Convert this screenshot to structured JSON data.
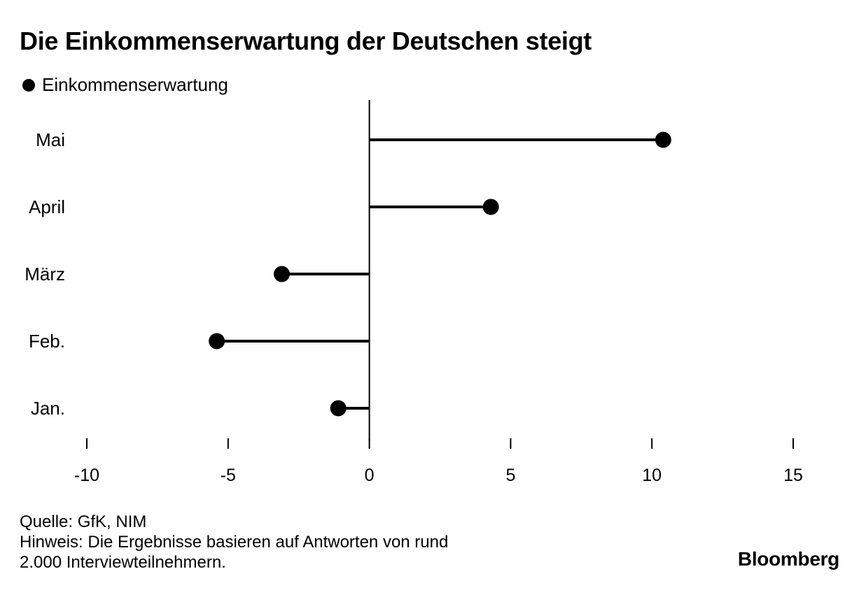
{
  "title": "Die Einkommenserwartung der Deutschen steigt",
  "legend": {
    "label": "Einkommenserwartung",
    "marker": "filled-circle",
    "color": "#000000"
  },
  "chart_data": {
    "type": "dot-lollipop-horizontal",
    "title": "Die Einkommenserwartung der Deutschen steigt",
    "categories": [
      "Mai",
      "April",
      "März",
      "Feb.",
      "Jan."
    ],
    "series": [
      {
        "name": "Einkommenserwartung",
        "values": [
          10.4,
          4.3,
          -3.1,
          -5.4,
          -1.1
        ]
      }
    ],
    "xlim": [
      -10,
      15
    ],
    "xticks": [
      -10,
      -5,
      0,
      5,
      10,
      15
    ],
    "xtick_labels": [
      "-10",
      "-5",
      "0",
      "5",
      "10",
      "15"
    ],
    "xlabel": "",
    "ylabel": "",
    "grid": false,
    "legend_position": "top-left",
    "color": "#000000"
  },
  "footer": {
    "source": "Quelle: GfK, NIM",
    "note_line1": "Hinweis: Die Ergebnisse basieren auf Antworten von rund",
    "note_line2": "2.000 Interviewteilnehmern."
  },
  "brand": "Bloomberg"
}
